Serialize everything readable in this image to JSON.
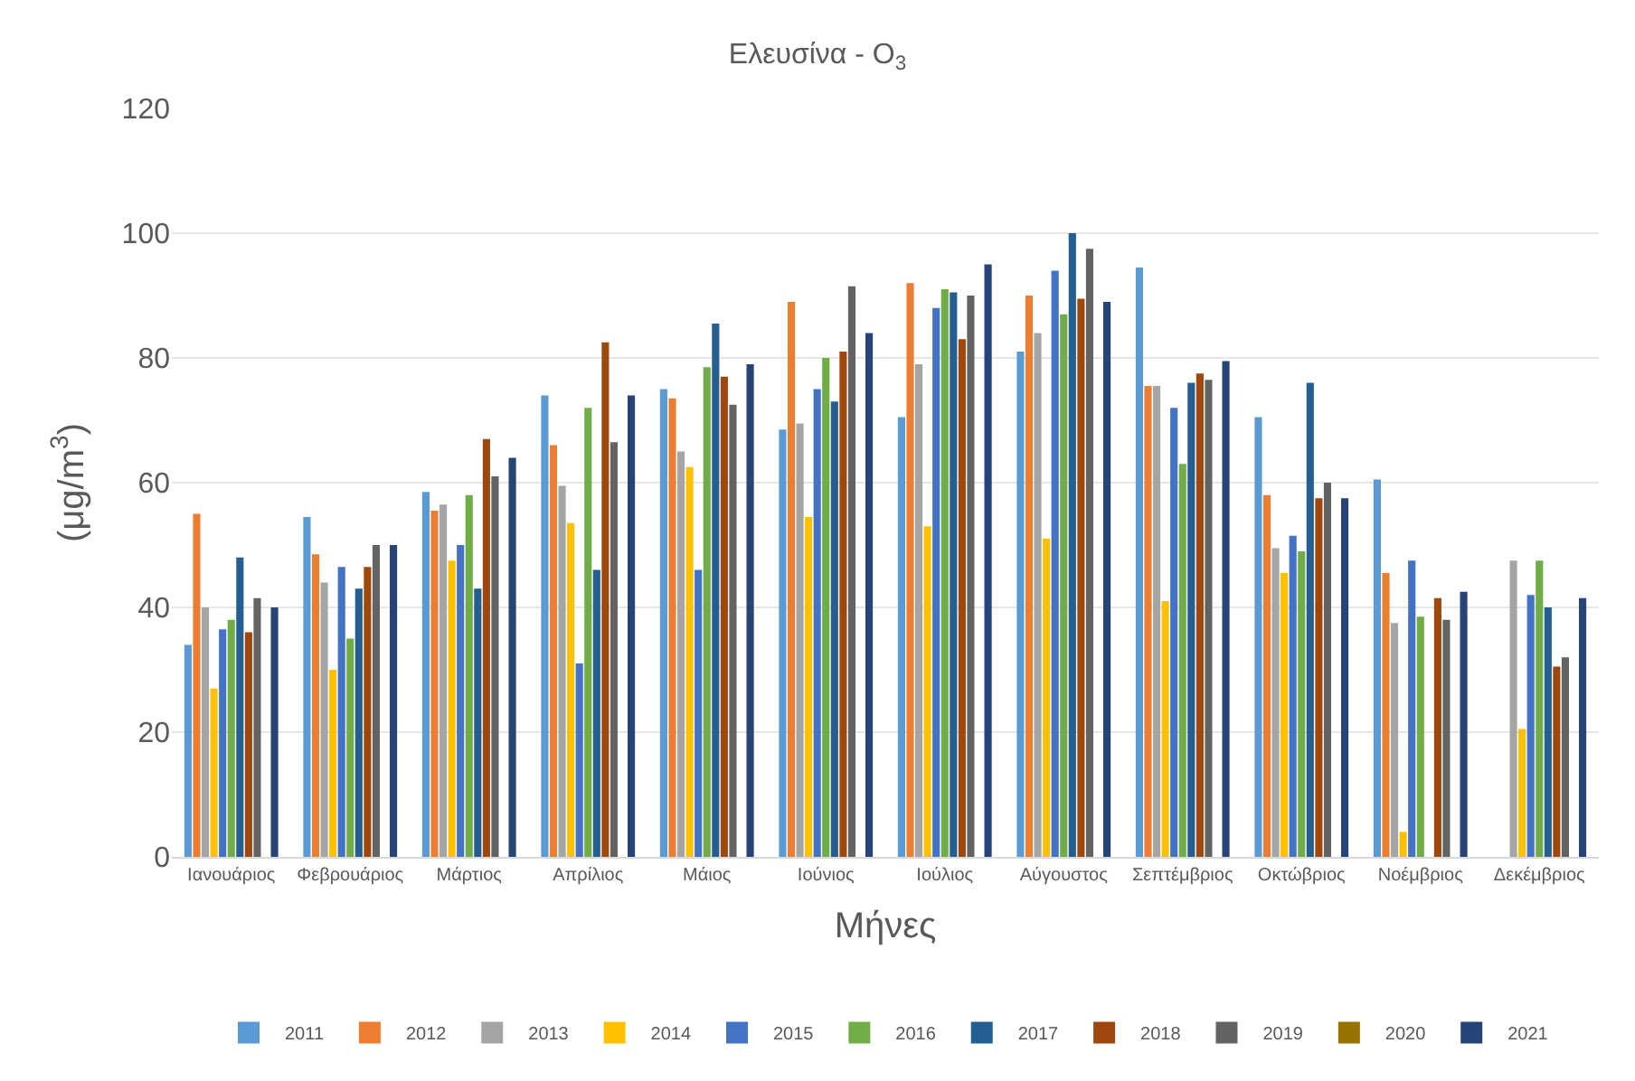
{
  "chart_data": {
    "type": "bar",
    "title": "Ελευσίνα - O$_{3}$",
    "xlabel": "Μήνες",
    "ylabel": "(μg/m$^{3}$)",
    "categories": [
      "Ιανουάριος",
      "Φεβρουάριος",
      "Μάρτιος",
      "Απρίλιος",
      "Μάιος",
      "Ιούνιος",
      "Ιούλιος",
      "Αύγουστος",
      "Σεπτέμβριος",
      "Οκτώβριος",
      "Νοέμβριος",
      "Δεκέμβριος"
    ],
    "ylim": [
      0,
      120
    ],
    "yticks": [
      0,
      20,
      40,
      60,
      80,
      100,
      120
    ],
    "grid": "y",
    "legend": "bottom",
    "series": [
      {
        "name": "2011",
        "color": "#5b9bd5",
        "values": [
          34,
          54.5,
          58.5,
          74,
          75,
          68.5,
          70.5,
          81,
          94.5,
          70.5,
          60.5,
          null
        ]
      },
      {
        "name": "2012",
        "color": "#ed7d31",
        "values": [
          55,
          48.5,
          55.5,
          66,
          73.5,
          89,
          92,
          90,
          75.5,
          58,
          45.5,
          null
        ]
      },
      {
        "name": "2013",
        "color": "#a5a5a5",
        "values": [
          40,
          44,
          56.5,
          59.5,
          65,
          69.5,
          79,
          84,
          75.5,
          49.5,
          37.5,
          47.5
        ]
      },
      {
        "name": "2014",
        "color": "#ffc000",
        "values": [
          27,
          30,
          47.5,
          53.5,
          62.5,
          54.5,
          53,
          51,
          41,
          45.5,
          4,
          20.5
        ]
      },
      {
        "name": "2015",
        "color": "#4472c4",
        "values": [
          36.5,
          46.5,
          50,
          31,
          46,
          75,
          88,
          94,
          72,
          51.5,
          47.5,
          42
        ]
      },
      {
        "name": "2016",
        "color": "#70ad47",
        "values": [
          38,
          35,
          58,
          72,
          78.5,
          80,
          91,
          87,
          63,
          49,
          38.5,
          47.5
        ]
      },
      {
        "name": "2017",
        "color": "#255e91",
        "values": [
          48,
          43,
          43,
          46,
          85.5,
          73,
          90.5,
          100,
          76,
          76,
          null,
          40
        ]
      },
      {
        "name": "2018",
        "color": "#9e480e",
        "values": [
          36,
          46.5,
          67,
          82.5,
          77,
          81,
          83,
          89.5,
          77.5,
          57.5,
          41.5,
          30.5
        ]
      },
      {
        "name": "2019",
        "color": "#636363",
        "values": [
          41.5,
          50,
          61,
          66.5,
          72.5,
          91.5,
          90,
          97.5,
          76.5,
          60,
          38,
          32
        ]
      },
      {
        "name": "2020",
        "color": "#997300",
        "values": [
          null,
          null,
          null,
          null,
          null,
          null,
          null,
          null,
          null,
          null,
          null,
          null
        ]
      },
      {
        "name": "2021",
        "color": "#264478",
        "values": [
          40,
          50,
          64,
          74,
          79,
          84,
          95,
          89,
          79.5,
          57.5,
          42.5,
          41.5
        ]
      }
    ]
  }
}
